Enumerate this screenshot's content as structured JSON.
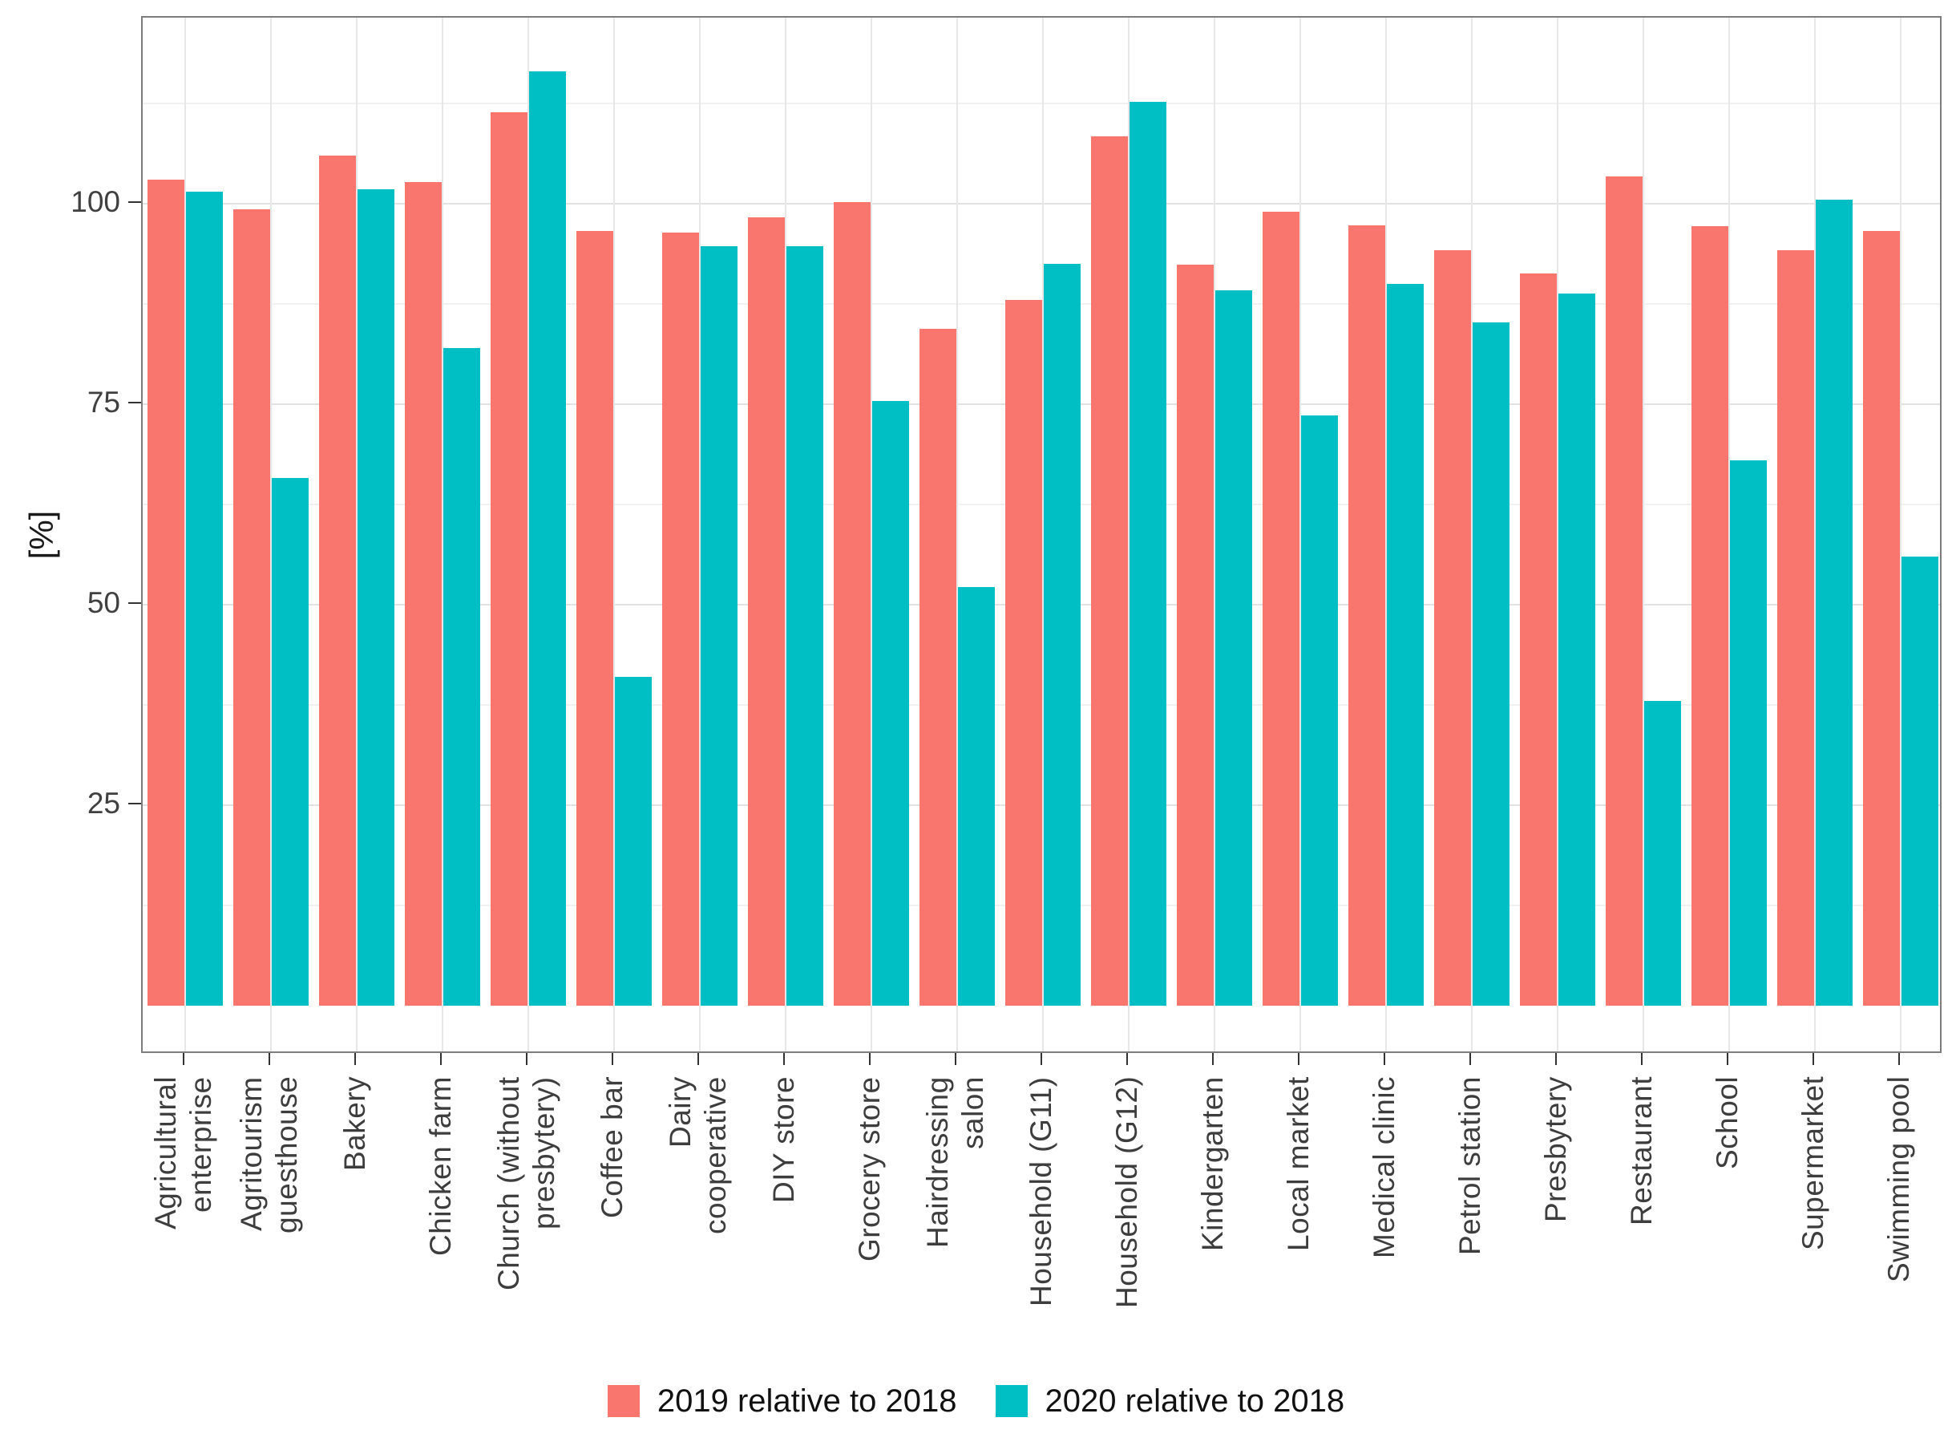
{
  "chart_data": {
    "type": "bar",
    "title": "",
    "xlabel": "",
    "ylabel": "[%]",
    "y_ticks": [
      25,
      50,
      75,
      100
    ],
    "ylim": [
      0,
      123
    ],
    "grid": {
      "major_step": 25,
      "minor_step": 12.5,
      "enabled": true
    },
    "legend_position": "bottom",
    "categories": [
      "Agricultural\nenterprise",
      "Agritourism\nguesthouse",
      "Bakery",
      "Chicken farm",
      "Church (without\npresbytery)",
      "Coffee bar",
      "Dairy\ncooperative",
      "DIY store",
      "Grocery store",
      "Hairdressing\nsalon",
      "Household (G11)",
      "Household (G12)",
      "Kindergarten",
      "Local market",
      "Medical clinic",
      "Petrol station",
      "Presbytery",
      "Restaurant",
      "School",
      "Supermarket",
      "Swimming pool"
    ],
    "series": [
      {
        "name": "2019 relative to 2018",
        "color": "#F8766D",
        "values": [
          103,
          99.3,
          106,
          102.7,
          111.4,
          96.6,
          96.4,
          98.3,
          100.2,
          84.4,
          88,
          108.4,
          92.4,
          99,
          97.3,
          94.2,
          91.3,
          103.4,
          97.2,
          94.2,
          96.6
        ]
      },
      {
        "name": "2020 relative to 2018",
        "color": "#00BFC4",
        "values": [
          101.5,
          65.8,
          101.8,
          82,
          116.5,
          41,
          94.7,
          94.7,
          75.4,
          52.2,
          92.5,
          112.7,
          89.2,
          73.6,
          90,
          85.2,
          88.8,
          38,
          68,
          100.5,
          56
        ]
      }
    ]
  },
  "colors": {
    "background": "#ffffff",
    "panel_border": "#7d7d7d",
    "grid_major": "#e2e2e2",
    "grid_minor": "#f1f1f1",
    "tick": "#333333",
    "axis_text": "#404040"
  }
}
